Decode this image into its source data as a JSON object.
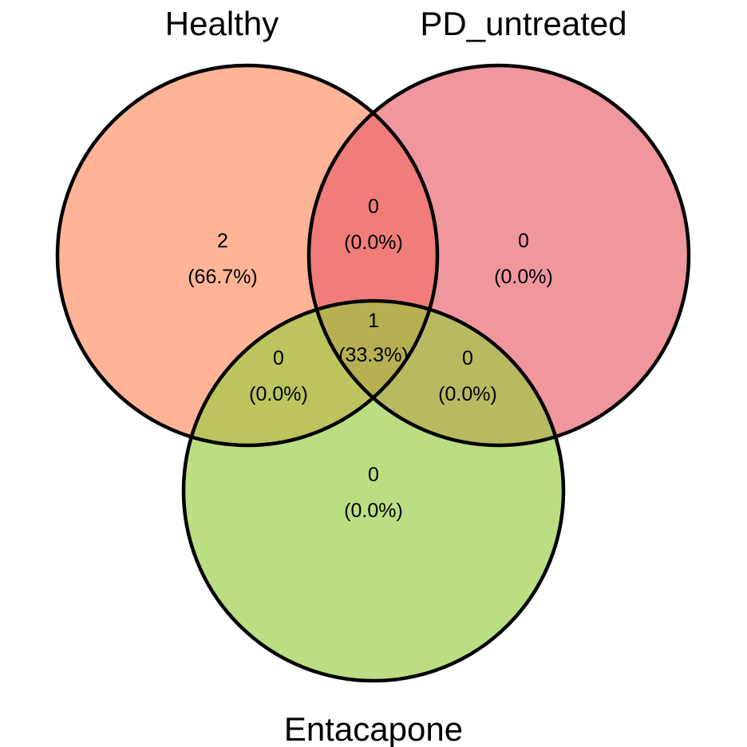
{
  "sets": [
    {
      "id": "healthy",
      "label": "Healthy",
      "color": "#FF8C61"
    },
    {
      "id": "pd_untreated",
      "label": "PD_untreated",
      "color": "#E8606A"
    },
    {
      "id": "entacapone",
      "label": "Entacapone",
      "color": "#98CC3F"
    }
  ],
  "fill_opacity": 0.65,
  "regions": [
    {
      "id": "healthy-only",
      "count": "2",
      "percent": "(66.7%)"
    },
    {
      "id": "pd_untreated-only",
      "count": "0",
      "percent": "(0.0%)"
    },
    {
      "id": "entacapone-only",
      "count": "0",
      "percent": "(0.0%)"
    },
    {
      "id": "healthy-pd_untreated",
      "count": "0",
      "percent": "(0.0%)"
    },
    {
      "id": "healthy-entacapone",
      "count": "0",
      "percent": "(0.0%)"
    },
    {
      "id": "pd_untreated-entacapone",
      "count": "0",
      "percent": "(0.0%)"
    },
    {
      "id": "all-three",
      "count": "1",
      "percent": "(33.3%)"
    }
  ]
}
